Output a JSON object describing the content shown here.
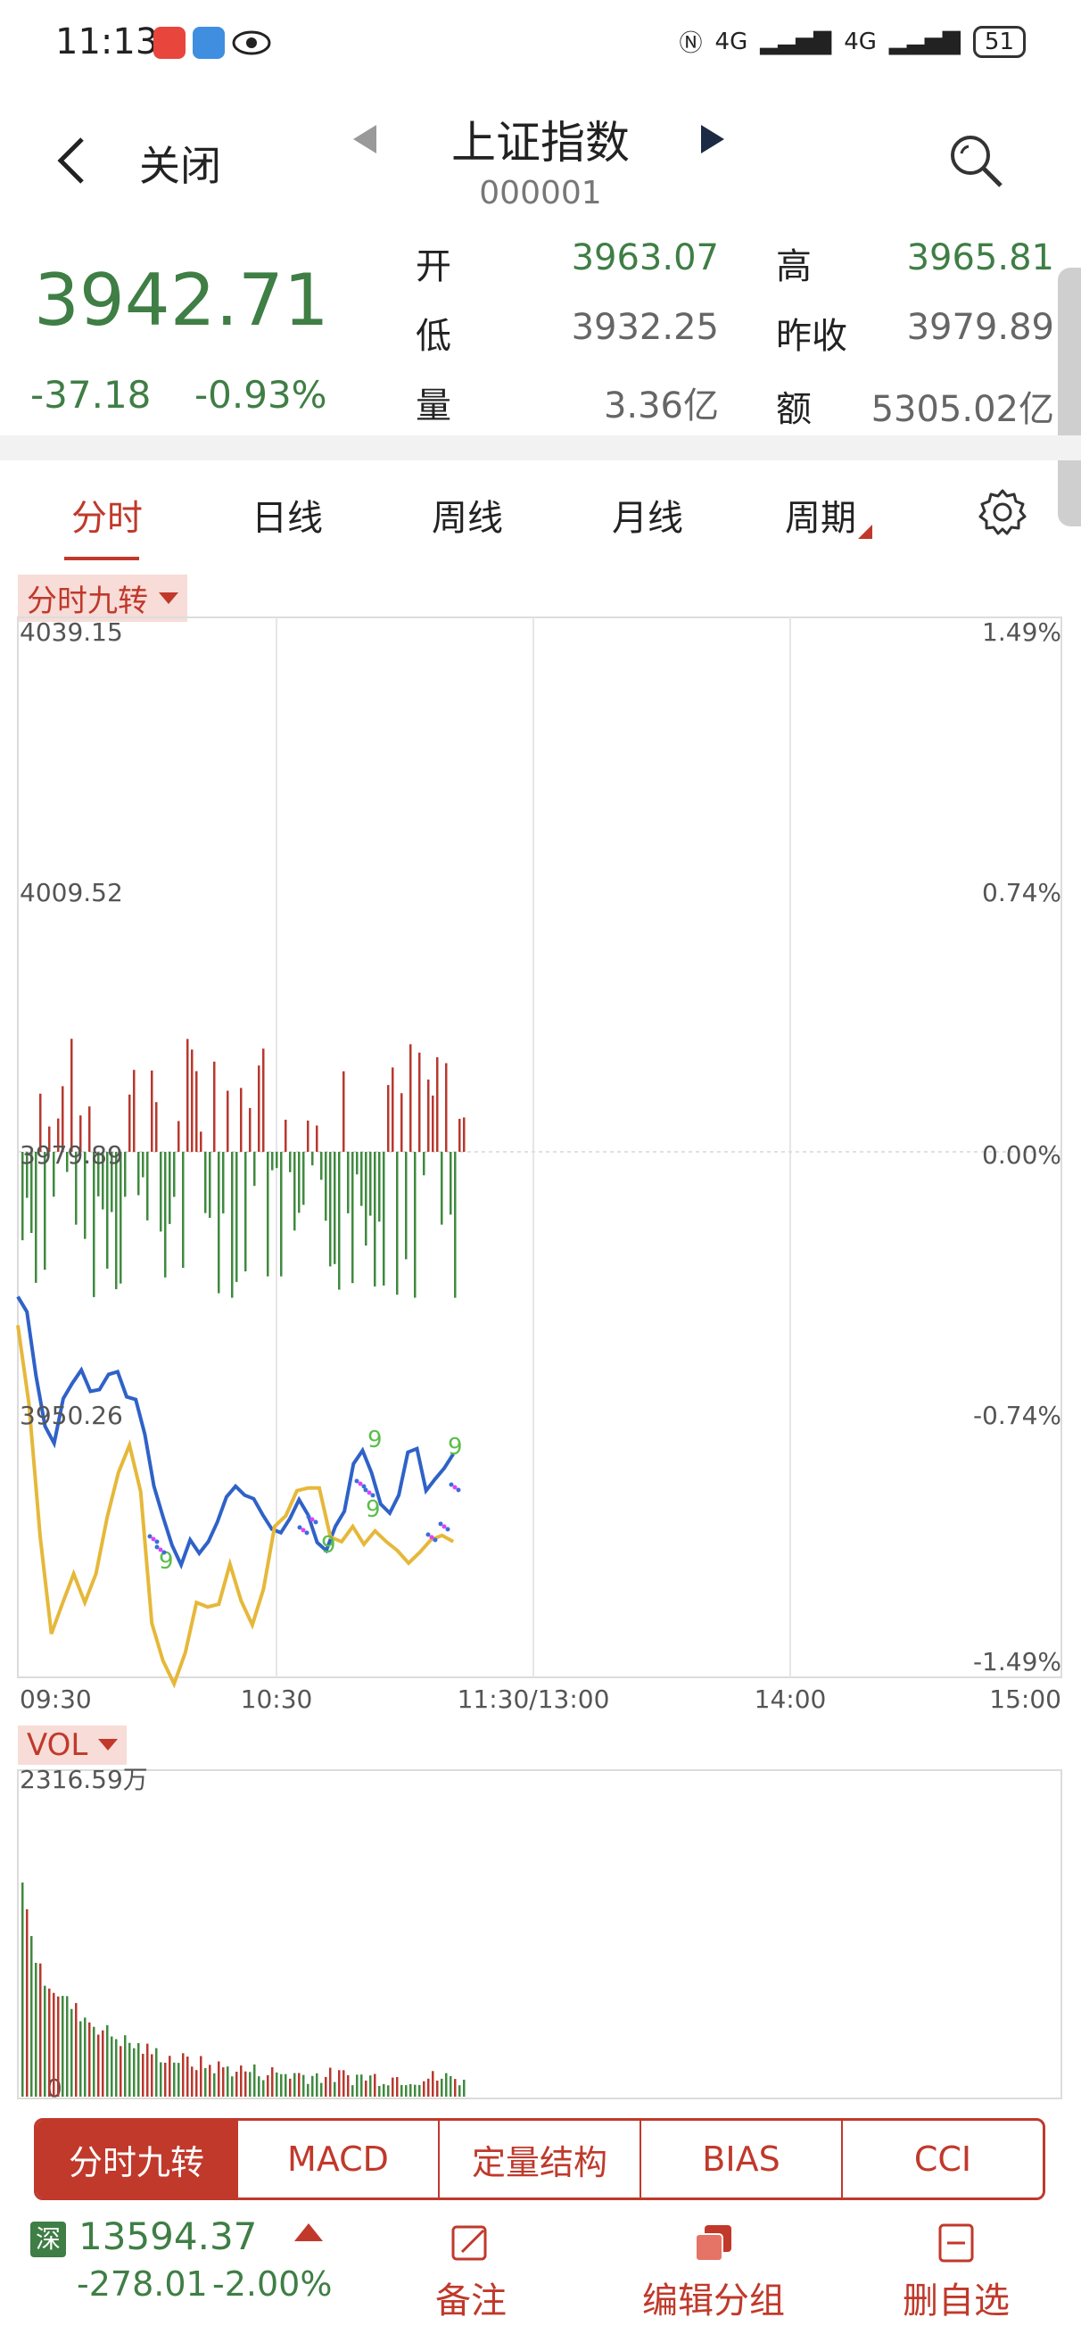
{
  "status_bar": {
    "time": "11:13",
    "signal_1": "4G",
    "signal_2": "4G",
    "battery": "51"
  },
  "header": {
    "close_label": "关闭",
    "title": "上证指数",
    "code": "000001"
  },
  "quote": {
    "price": "3942.71",
    "change": "-37.18",
    "change_pct": "-0.93%",
    "open_label": "开",
    "open": "3963.07",
    "high_label": "高",
    "high": "3965.81",
    "low_label": "低",
    "low": "3932.25",
    "prev_close_label": "昨收",
    "prev_close": "3979.89",
    "volume_label": "量",
    "volume": "3.36亿",
    "amount_label": "额",
    "amount": "5305.02亿"
  },
  "period_tabs": [
    "分时",
    "日线",
    "周线",
    "月线",
    "周期"
  ],
  "indicator_top": "分时九转",
  "indicator_vol": "VOL",
  "chart_data": {
    "type": "line",
    "y_left_ticks": [
      "4039.15",
      "4009.52",
      "3979.89",
      "3950.26"
    ],
    "y_right_ticks": [
      "1.49%",
      "0.74%",
      "0.00%",
      "-0.74%",
      "-1.49%"
    ],
    "x_ticks": [
      "09:30",
      "10:30",
      "11:30/13:00",
      "14:00",
      "15:00"
    ],
    "ylim": [
      3920.63,
      4039.15
    ],
    "prev_close": 3979.89,
    "series": [
      {
        "color": "#2f62c8",
        "values": [
          3963.2,
          3961.5,
          3954.4,
          3948.7,
          3946.8,
          3951.8,
          3953.5,
          3955.0,
          3952.6,
          3952.8,
          3954.5,
          3954.8,
          3952.0,
          3951.7,
          3947.8,
          3942.0,
          3938.6,
          3935.4,
          3933.2,
          3936.0,
          3934.5,
          3935.8,
          3938.0,
          3940.8,
          3942.0,
          3941.0,
          3940.6,
          3938.8,
          3937.2,
          3936.8,
          3938.4,
          3940.5,
          3938.8,
          3935.7,
          3934.8,
          3937.5,
          3939.2,
          3944.5,
          3946.0,
          3943.5,
          3940.0,
          3939.0,
          3941.0,
          3945.8,
          3946.2,
          3941.5,
          3942.8,
          3944.0,
          3945.6
        ]
      },
      {
        "color": "#e6b83a",
        "values": [
          3960.0,
          3951.2,
          3936.4,
          3925.5,
          3928.9,
          3932.2,
          3929.0,
          3932.2,
          3938.5,
          3943.5,
          3946.6,
          3941.4,
          3926.7,
          3922.5,
          3919.9,
          3923.4,
          3929.0,
          3928.5,
          3928.8,
          3933.3,
          3929.2,
          3926.5,
          3930.5,
          3937.5,
          3938.7,
          3941.5,
          3941.8,
          3941.8,
          3936.3,
          3935.8,
          3937.5,
          3935.5,
          3937.0,
          3935.8,
          3934.8,
          3933.4,
          3934.6,
          3936.0,
          3936.5,
          3935.8
        ]
      }
    ]
  },
  "vol_chart": {
    "max_label": "2316.59万",
    "zero_label": "0"
  },
  "indicator_tabs": [
    "分时九转",
    "MACD",
    "定量结构",
    "BIAS",
    "CCI"
  ],
  "bottom_bar": {
    "market_badge": "深",
    "sz_index": "13594.37",
    "sz_change": "-278.01",
    "sz_pct": "-2.00%",
    "note_label": "备注",
    "edit_group_label": "编辑分组",
    "remove_label": "删自选"
  }
}
